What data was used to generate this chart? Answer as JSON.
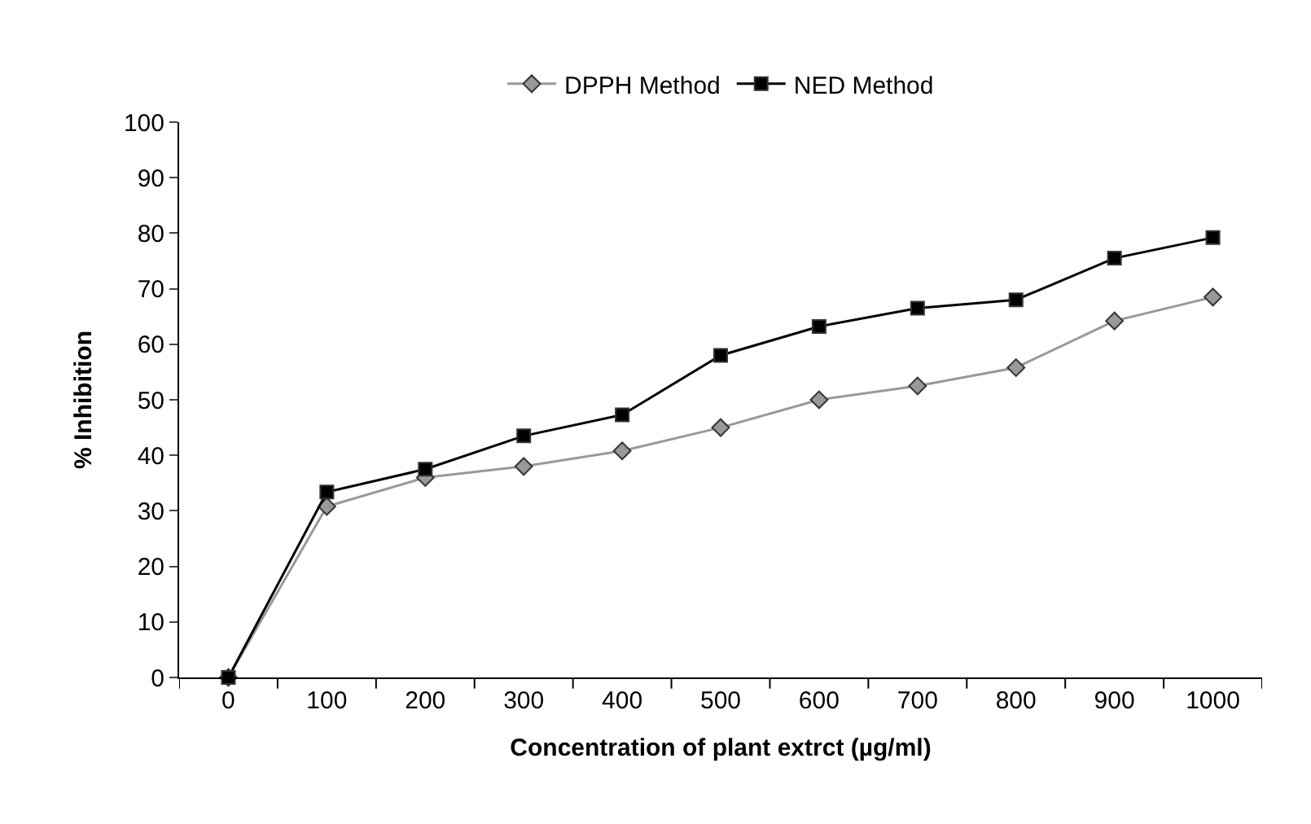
{
  "chart_data": {
    "type": "line",
    "xlabel": "Concentration of plant extrct (µg/ml)",
    "ylabel": "% Inhibition",
    "categories": [
      "0",
      "100",
      "200",
      "300",
      "400",
      "500",
      "600",
      "700",
      "800",
      "900",
      "1000"
    ],
    "series": [
      {
        "name": "DPPH Method",
        "color": "#999999",
        "marker": "diamond",
        "values": [
          0,
          30.8,
          36,
          38,
          40.8,
          45,
          50,
          52.5,
          55.8,
          64.2,
          68.5
        ]
      },
      {
        "name": "NED Method",
        "color": "#000000",
        "marker": "square",
        "values": [
          0,
          33.4,
          37.5,
          43.5,
          47.3,
          58,
          63.2,
          66.5,
          68,
          75.5,
          79.2
        ]
      }
    ],
    "ylim": [
      0,
      100
    ],
    "yticks": [
      0,
      10,
      20,
      30,
      40,
      50,
      60,
      70,
      80,
      90,
      100
    ],
    "legend": "top",
    "line_style": "solid"
  }
}
